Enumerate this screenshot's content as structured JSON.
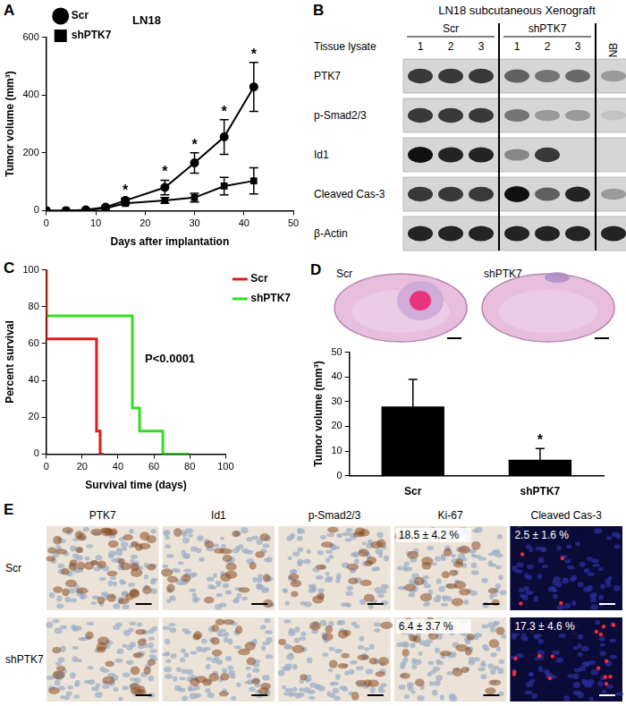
{
  "chart_data": [
    {
      "panel": "A",
      "type": "line",
      "title": "LN18",
      "x_label": "Days after implantation",
      "y_label": "Tumor volume (mm³)",
      "xlim": [
        0,
        50
      ],
      "xticks": [
        0,
        10,
        20,
        30,
        40,
        50
      ],
      "ylim": [
        0,
        600
      ],
      "yticks": [
        0,
        200,
        400,
        600
      ],
      "grid": false,
      "legend": "upper left",
      "series": [
        {
          "name": "Scr",
          "color": "#000000",
          "marker": "circle",
          "x": [
            0,
            4,
            8,
            12,
            16,
            24,
            30,
            36,
            42
          ],
          "values": [
            0,
            0,
            3,
            12,
            35,
            80,
            165,
            255,
            428
          ],
          "errors": [
            0,
            0,
            2,
            5,
            8,
            25,
            35,
            60,
            85
          ]
        },
        {
          "name": "shPTK7",
          "color": "#000000",
          "marker": "square",
          "x": [
            0,
            4,
            8,
            12,
            16,
            24,
            30,
            36,
            42
          ],
          "values": [
            0,
            0,
            2,
            8,
            25,
            35,
            45,
            85,
            103
          ],
          "errors": [
            0,
            0,
            1,
            3,
            5,
            10,
            15,
            30,
            45
          ]
        }
      ],
      "annotations": [
        {
          "text": "*",
          "x": 16
        },
        {
          "text": "*",
          "x": 24
        },
        {
          "text": "*",
          "x": 30
        },
        {
          "text": "*",
          "x": 36
        },
        {
          "text": "*",
          "x": 42
        }
      ]
    },
    {
      "panel": "C",
      "type": "line",
      "x_label": "Survival time (days)",
      "y_label": "Percent survival",
      "xlim": [
        0,
        100
      ],
      "xticks": [
        0,
        20,
        40,
        60,
        80,
        100
      ],
      "ylim": [
        0,
        100
      ],
      "yticks": [
        0,
        20,
        40,
        60,
        80,
        100
      ],
      "grid": false,
      "legend": "right",
      "series": [
        {
          "name": "Scr",
          "color": "#e41a1c",
          "line_style": "steps",
          "x": [
            0,
            28,
            30,
            32
          ],
          "values": [
            100,
            62.5,
            12.5,
            0
          ]
        },
        {
          "name": "shPTK7",
          "color": "#33dd22",
          "line_style": "steps",
          "x": [
            0,
            48,
            52,
            65,
            80
          ],
          "values": [
            100,
            75,
            25,
            12.5,
            0
          ]
        }
      ],
      "annotations": [
        {
          "text": "P<0.0001"
        }
      ]
    },
    {
      "panel": "D",
      "type": "bar",
      "y_label": "Tumor volume (mm³)",
      "categories": [
        "Scr",
        "shPTK7"
      ],
      "values": [
        28,
        6.5
      ],
      "errors": [
        11,
        4.5
      ],
      "color": "#000000",
      "ylim": [
        0,
        50
      ],
      "yticks": [
        0,
        10,
        20,
        30,
        40,
        50
      ],
      "grid": false,
      "annotations": [
        {
          "text": "*",
          "category": "shPTK7"
        }
      ]
    }
  ],
  "brain_sections": {
    "labels": [
      "Scr",
      "shPTK7"
    ]
  },
  "blot": {
    "panel": "B",
    "title": "LN18 subcutaneous Xenograft",
    "lane_header": "Tissue lysate",
    "groups": [
      {
        "label": "Scr",
        "lanes": [
          "1",
          "2",
          "3"
        ]
      },
      {
        "label": "shPTK7",
        "lanes": [
          "1",
          "2",
          "3"
        ]
      },
      {
        "label": "NB",
        "lanes": [
          null
        ]
      }
    ],
    "rows": [
      {
        "label": "PTK7",
        "band_intensity": [
          0.8,
          0.8,
          0.8,
          0.6,
          0.5,
          0.55,
          0.3
        ]
      },
      {
        "label": "p-Smad2/3",
        "band_intensity": [
          0.8,
          0.8,
          0.8,
          0.5,
          0.3,
          0.3,
          0.1
        ]
      },
      {
        "label": "Id1",
        "band_intensity": [
          1,
          0.9,
          0.9,
          0.4,
          0.8,
          0,
          0
        ]
      },
      {
        "label": "Cleaved Cas-3",
        "band_intensity": [
          0.8,
          0.8,
          0.8,
          1,
          0.6,
          0.9,
          0.3
        ]
      },
      {
        "label": "β-Actin",
        "band_intensity": [
          0.9,
          0.9,
          0.9,
          0.9,
          0.9,
          0.9,
          0.9
        ]
      }
    ]
  },
  "ihc": {
    "panel": "E",
    "columns": [
      "PTK7",
      "Id1",
      "p-Smad2/3",
      "Ki-67",
      "Cleaved Cas-3"
    ],
    "rows": [
      {
        "label": "Scr",
        "cell_text": [
          null,
          null,
          null,
          "18.5 ± 4.2 %",
          "2.5 ± 1.6 %"
        ]
      },
      {
        "label": "shPTK7",
        "cell_text": [
          null,
          null,
          null,
          "6.4 ± 3.7 %",
          "17.3 ± 4.6 %"
        ]
      }
    ]
  }
}
